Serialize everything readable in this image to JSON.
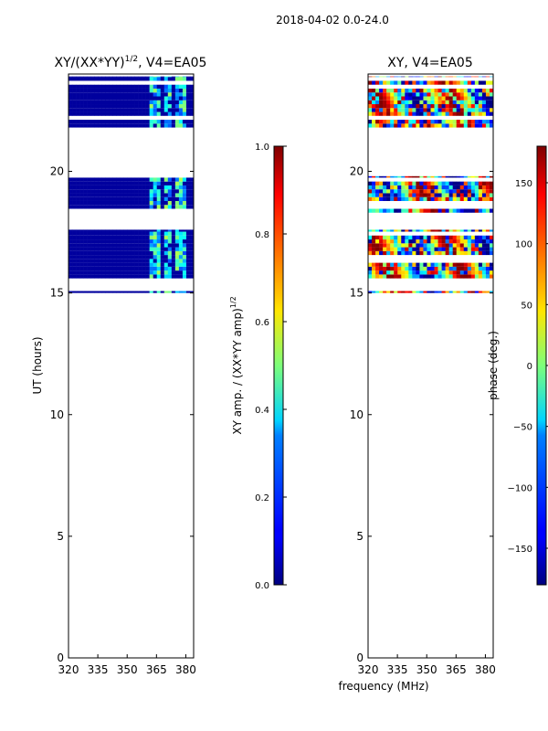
{
  "figure_title": "2018-04-02 0.0-24.0",
  "xlabel_shared": "frequency (MHz)",
  "colors": {
    "background": "#ffffff",
    "axis": "#000000"
  },
  "chart_data": [
    {
      "type": "heatmap",
      "title": "XY/(XX*YY)",
      "title_exponent": "1/2",
      "title_suffix": ", V4=EA05",
      "xlabel": "",
      "ylabel": "UT (hours)",
      "xlim": [
        320,
        384
      ],
      "ylim": [
        0,
        24
      ],
      "xticks": [
        "320",
        "335",
        "350",
        "365",
        "380"
      ],
      "xtick_values": [
        320,
        335,
        350,
        365,
        380
      ],
      "yticks": [
        "0",
        "5",
        "10",
        "15",
        "20"
      ],
      "ytick_values": [
        0,
        5,
        10,
        15,
        20
      ],
      "colorbar": {
        "label": "XY amp. / (XX*YY amp)",
        "label_exponent": "1/2",
        "range": [
          0.0,
          1.0
        ],
        "ticks": [
          "0.0",
          "0.2",
          "0.4",
          "0.6",
          "0.8",
          "1.0"
        ],
        "tick_values": [
          0.0,
          0.2,
          0.4,
          0.6,
          0.8,
          1.0
        ],
        "colormap": "jet"
      },
      "mode": "amplitude",
      "data_bands_ut": [
        [
          15.0,
          15.08
        ],
        [
          15.6,
          17.6
        ],
        [
          18.3,
          19.8
        ],
        [
          21.8,
          23.9
        ]
      ],
      "active_freq_ranges_mhz": [
        [
          361,
          366
        ],
        [
          368,
          372
        ],
        [
          373,
          380
        ]
      ],
      "background_value": 0.03,
      "active_value_range": [
        0.2,
        0.55
      ]
    },
    {
      "type": "heatmap",
      "title": "XY, V4=EA05",
      "xlabel": "",
      "ylabel": "",
      "xlim": [
        320,
        384
      ],
      "ylim": [
        0,
        24
      ],
      "xticks": [
        "320",
        "335",
        "350",
        "365",
        "380"
      ],
      "xtick_values": [
        320,
        335,
        350,
        365,
        380
      ],
      "yticks": [
        "0",
        "5",
        "10",
        "15",
        "20"
      ],
      "ytick_values": [
        0,
        5,
        10,
        15,
        20
      ],
      "colorbar": {
        "label": "phase (deg.)",
        "range": [
          -180,
          180
        ],
        "ticks": [
          "−150",
          "−100",
          "−50",
          "0",
          "50",
          "100",
          "150"
        ],
        "tick_values": [
          -150,
          -100,
          -50,
          0,
          50,
          100,
          150
        ],
        "colormap": "jet"
      },
      "mode": "phase",
      "data_bands_ut": [
        [
          15.0,
          15.08
        ],
        [
          15.6,
          17.6
        ],
        [
          18.3,
          19.8
        ],
        [
          21.8,
          23.9
        ]
      ],
      "value_range": [
        -180,
        180
      ]
    }
  ]
}
